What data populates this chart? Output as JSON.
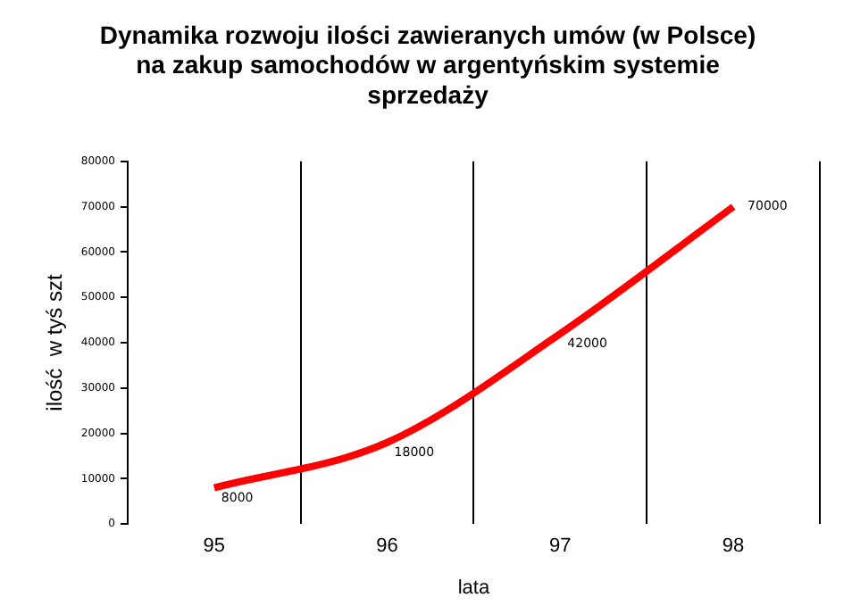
{
  "chart_data": {
    "type": "line",
    "title": "Dynamika rozwoju ilości zawieranych umów (w Polsce)\nna zakup samochodów w argentyńskim systemie\nsprzedaży",
    "xlabel": "lata",
    "ylabel": "ilość  w tyś szt",
    "categories": [
      "95",
      "96",
      "97",
      "98"
    ],
    "series": [
      {
        "color": "#ff0000",
        "values": [
          8000,
          18000,
          42000,
          70000
        ]
      }
    ],
    "ylim": [
      0,
      80000
    ],
    "yticks": [
      0,
      10000,
      20000,
      30000,
      40000,
      50000,
      60000,
      70000,
      80000
    ],
    "grid": "x",
    "legend": false,
    "marker": "none",
    "line_style": "solid",
    "data_labels": true
  }
}
